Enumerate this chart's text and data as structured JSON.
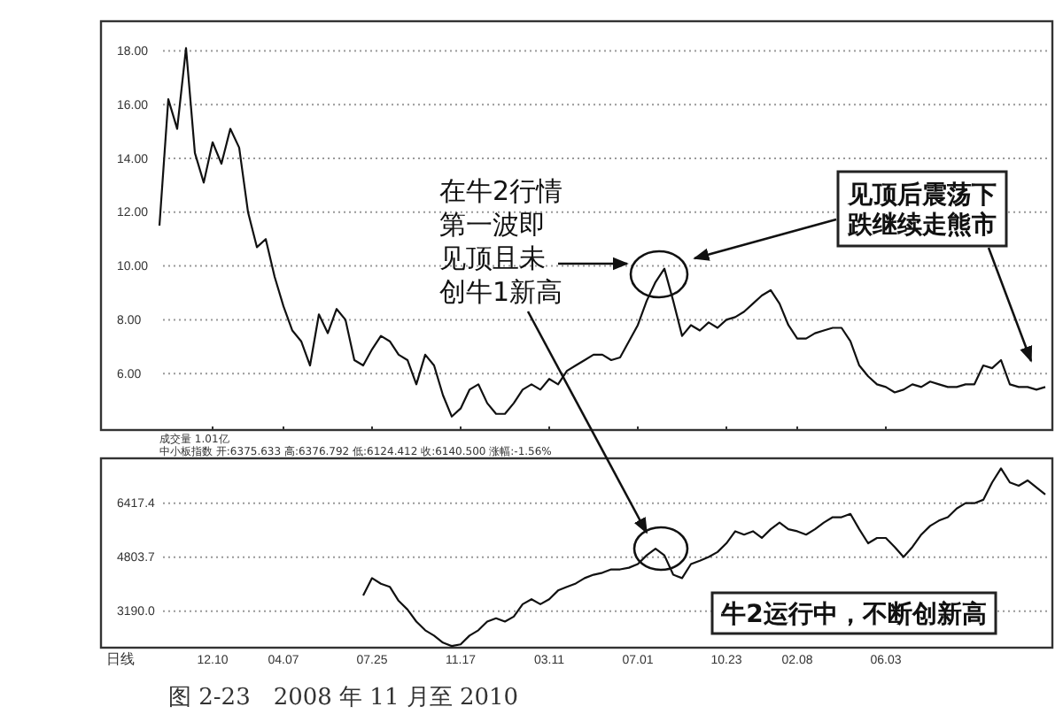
{
  "chart_data": [
    {
      "type": "line",
      "categories": [
        null,
        null,
        null,
        null,
        null,
        null,
        null,
        null,
        null,
        null,
        null,
        null,
        "12.10",
        null,
        null,
        null,
        null,
        null,
        null,
        null,
        "04.07",
        null,
        null,
        null,
        null,
        null,
        null,
        null,
        null,
        null,
        "07.25",
        null,
        null,
        null,
        null,
        null,
        null,
        null,
        null,
        null,
        "11.17",
        null,
        null,
        null,
        null,
        null,
        null,
        null,
        null,
        null,
        "03.11",
        null,
        null,
        null,
        null,
        null,
        null,
        null,
        null,
        null,
        "07.01",
        null,
        null,
        null,
        null,
        null,
        null,
        null,
        null,
        null,
        "10.23",
        null,
        null,
        null,
        null,
        null,
        null,
        null,
        "02.08",
        null,
        null,
        null,
        null,
        null,
        null,
        null,
        null,
        null,
        "06.03",
        null,
        null,
        null,
        null,
        null,
        null,
        null,
        null,
        null,
        null,
        null,
        null,
        null,
        null,
        null,
        null,
        null,
        null
      ],
      "series": [
        {
          "color": "#111111",
          "values": [
            null,
            null,
            null,
            null,
            null,
            null,
            11.5,
            16.2,
            15.1,
            18.1,
            14.2,
            13.1,
            14.6,
            13.8,
            15.1,
            14.4,
            12.0,
            10.7,
            11.0,
            9.6,
            8.5,
            7.6,
            7.2,
            6.3,
            8.2,
            7.5,
            8.4,
            8.0,
            6.5,
            6.3,
            6.9,
            7.4,
            7.2,
            6.7,
            6.5,
            5.6,
            6.7,
            6.3,
            5.2,
            4.4,
            4.7,
            5.4,
            5.6,
            4.9,
            4.5,
            4.5,
            4.9,
            5.4,
            5.6,
            5.4,
            5.8,
            5.6,
            6.1,
            6.3,
            6.5,
            6.7,
            6.7,
            6.5,
            6.6,
            7.2,
            7.8,
            8.7,
            9.4,
            9.9,
            8.7,
            7.4,
            7.8,
            7.6,
            7.9,
            7.7,
            8.0,
            8.1,
            8.3,
            8.6,
            8.9,
            9.1,
            8.6,
            7.8,
            7.3,
            7.3,
            7.5,
            7.6,
            7.7,
            7.7,
            7.2,
            6.3,
            5.9,
            5.6,
            5.5,
            5.3,
            5.4,
            5.6,
            5.5,
            5.7,
            5.6,
            5.5,
            5.5,
            5.6,
            5.6,
            6.3,
            6.2,
            6.5,
            5.6,
            5.5,
            5.5,
            5.4,
            5.5
          ]
        }
      ],
      "ylim": [
        3.9,
        19.1
      ],
      "yticks": [
        {
          "value": 6,
          "label": "6.00"
        },
        {
          "value": 8,
          "label": "8.00"
        },
        {
          "value": 10,
          "label": "10.00"
        },
        {
          "value": 12,
          "label": "12.00"
        },
        {
          "value": 14,
          "label": "14.00"
        },
        {
          "value": 16,
          "label": "16.00"
        },
        {
          "value": 18,
          "label": "18.00"
        }
      ],
      "grid": "y",
      "tick_labels": "y",
      "line_style": "solid",
      "annotations": [
        "在牛2行情第一波即见顶且未创牛1新高",
        "见顶后震荡下跌继续走熊市"
      ]
    },
    {
      "type": "line",
      "title": "中小板指数 开:6375.633 高:6376.792 低:6124.412 收:6140.500 涨幅:-1.56%",
      "categories": [
        null,
        null,
        null,
        null,
        null,
        null,
        null,
        null,
        null,
        null,
        null,
        null,
        "12.10",
        null,
        null,
        null,
        null,
        null,
        null,
        null,
        "04.07",
        null,
        null,
        null,
        null,
        null,
        null,
        null,
        null,
        null,
        "07.25",
        null,
        null,
        null,
        null,
        null,
        null,
        null,
        null,
        null,
        "11.17",
        null,
        null,
        null,
        null,
        null,
        null,
        null,
        null,
        null,
        "03.11",
        null,
        null,
        null,
        null,
        null,
        null,
        null,
        null,
        null,
        "07.01",
        null,
        null,
        null,
        null,
        null,
        null,
        null,
        null,
        null,
        "10.23",
        null,
        null,
        null,
        null,
        null,
        null,
        null,
        "02.08",
        null,
        null,
        null,
        null,
        null,
        null,
        null,
        null,
        null,
        "06.03",
        null,
        null,
        null,
        null,
        null,
        null,
        null,
        null,
        null,
        null,
        null,
        null,
        null,
        null,
        null,
        null,
        null,
        null
      ],
      "series": [
        {
          "color": "#111111",
          "values": [
            null,
            null,
            null,
            null,
            null,
            null,
            null,
            null,
            null,
            null,
            null,
            null,
            null,
            null,
            null,
            null,
            null,
            null,
            null,
            null,
            null,
            null,
            null,
            null,
            null,
            null,
            null,
            null,
            null,
            3660,
            4180,
            4010,
            3920,
            3500,
            3240,
            2880,
            2620,
            2460,
            2250,
            2150,
            2200,
            2460,
            2620,
            2880,
            2980,
            2880,
            3030,
            3400,
            3550,
            3400,
            3550,
            3810,
            3920,
            4020,
            4180,
            4280,
            4340,
            4440,
            4440,
            4490,
            4600,
            4860,
            5060,
            4860,
            4280,
            4180,
            4600,
            4700,
            4810,
            4960,
            5220,
            5580,
            5480,
            5580,
            5380,
            5640,
            5840,
            5640,
            5580,
            5480,
            5640,
            5840,
            6000,
            6000,
            6100,
            5640,
            5220,
            5380,
            5380,
            5110,
            4810,
            5110,
            5480,
            5740,
            5900,
            6000,
            6260,
            6420,
            6420,
            6520,
            7040,
            7460,
            7040,
            6940,
            7100,
            6890,
            6680
          ]
        }
      ],
      "ylim": [
        2100,
        7760
      ],
      "yticks": [
        {
          "value": 3190,
          "label": "3190.0"
        },
        {
          "value": 4803.7,
          "label": "4803.7"
        },
        {
          "value": 6417.4,
          "label": "6417.4"
        }
      ],
      "grid": "y",
      "line_style": "solid",
      "annotations": [
        "成交量 1.01亿",
        "牛2运行中，不断创新高",
        "日线",
        "图 2-23　2008 年 11 月至 2010"
      ]
    }
  ]
}
